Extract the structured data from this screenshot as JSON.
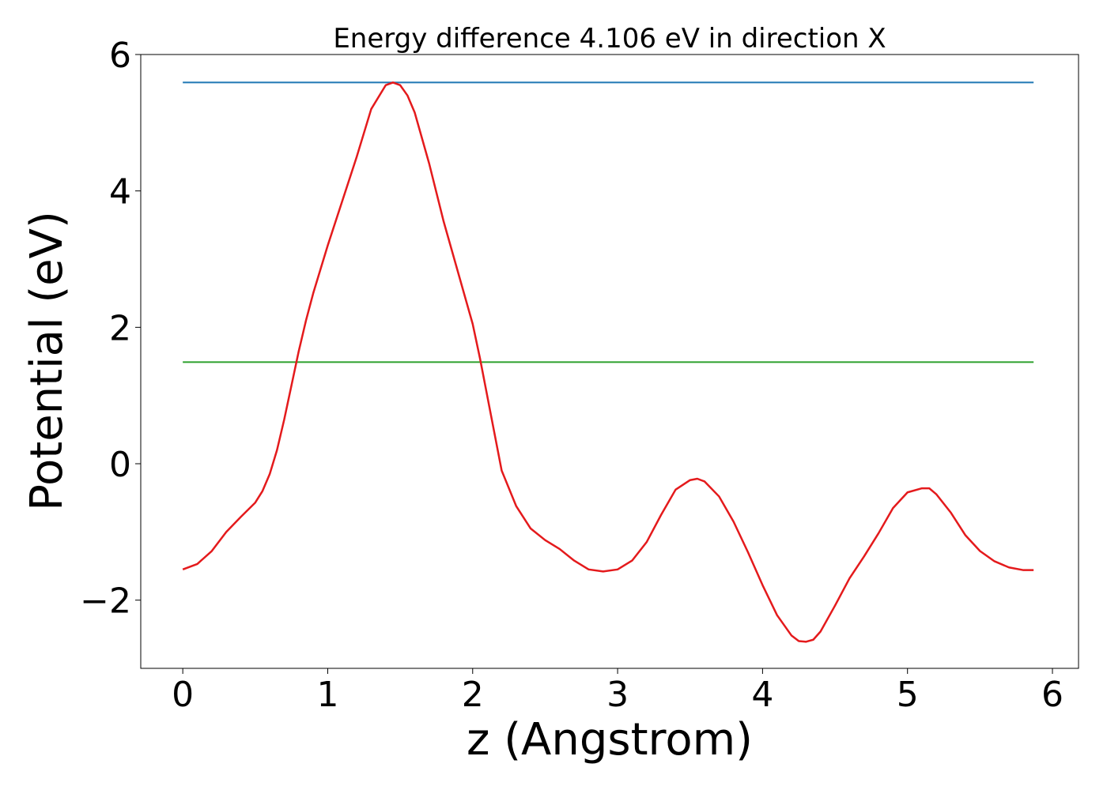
{
  "chart_data": {
    "type": "line",
    "title": "Energy difference 4.106 eV in direction X",
    "xlabel": "z (Angstrom)",
    "ylabel": "Potential (eV)",
    "xlim": [
      -0.29,
      6.18
    ],
    "ylim": [
      -3.0,
      6.0
    ],
    "xticks": [
      0,
      1,
      2,
      3,
      4,
      5,
      6
    ],
    "yticks": [
      -2,
      0,
      2,
      4,
      6
    ],
    "xtick_labels": [
      "0",
      "1",
      "2",
      "3",
      "4",
      "5",
      "6"
    ],
    "ytick_labels": [
      "−2",
      "0",
      "2",
      "4",
      "6"
    ],
    "grid": false,
    "series": [
      {
        "color": "#1f77b4",
        "style": "hline",
        "x": [
          0,
          5.87
        ],
        "y": [
          5.59,
          5.59
        ]
      },
      {
        "color": "#2ca02c",
        "style": "hline",
        "x": [
          0,
          5.87
        ],
        "y": [
          1.49,
          1.49
        ]
      },
      {
        "color": "#e41a1c",
        "style": "curve",
        "x": [
          0.0,
          0.1,
          0.2,
          0.3,
          0.4,
          0.5,
          0.55,
          0.6,
          0.65,
          0.7,
          0.75,
          0.8,
          0.85,
          0.9,
          1.0,
          1.1,
          1.2,
          1.3,
          1.4,
          1.45,
          1.5,
          1.55,
          1.6,
          1.7,
          1.8,
          1.9,
          2.0,
          2.05,
          2.1,
          2.15,
          2.2,
          2.3,
          2.4,
          2.5,
          2.6,
          2.7,
          2.8,
          2.9,
          3.0,
          3.1,
          3.2,
          3.3,
          3.4,
          3.5,
          3.55,
          3.6,
          3.7,
          3.8,
          3.9,
          4.0,
          4.1,
          4.2,
          4.25,
          4.3,
          4.35,
          4.4,
          4.5,
          4.6,
          4.7,
          4.8,
          4.9,
          5.0,
          5.1,
          5.15,
          5.2,
          5.3,
          5.4,
          5.5,
          5.6,
          5.7,
          5.8,
          5.87
        ],
        "y": [
          -1.55,
          -1.47,
          -1.28,
          -1.0,
          -0.78,
          -0.57,
          -0.4,
          -0.15,
          0.2,
          0.65,
          1.15,
          1.65,
          2.1,
          2.5,
          3.2,
          3.85,
          4.5,
          5.2,
          5.55,
          5.59,
          5.55,
          5.4,
          5.15,
          4.4,
          3.55,
          2.8,
          2.05,
          1.55,
          1.0,
          0.45,
          -0.1,
          -0.62,
          -0.95,
          -1.12,
          -1.25,
          -1.42,
          -1.55,
          -1.58,
          -1.55,
          -1.42,
          -1.15,
          -0.75,
          -0.38,
          -0.24,
          -0.22,
          -0.26,
          -0.48,
          -0.85,
          -1.3,
          -1.78,
          -2.22,
          -2.52,
          -2.6,
          -2.61,
          -2.58,
          -2.46,
          -2.08,
          -1.68,
          -1.36,
          -1.02,
          -0.65,
          -0.42,
          -0.36,
          -0.36,
          -0.45,
          -0.72,
          -1.05,
          -1.28,
          -1.43,
          -1.52,
          -1.56,
          -1.56
        ]
      }
    ]
  }
}
